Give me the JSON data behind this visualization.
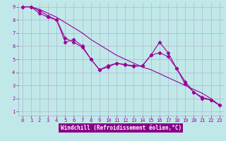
{
  "line1_x": [
    0,
    1,
    2,
    3,
    4,
    5,
    6,
    7,
    8,
    9,
    10,
    11,
    12,
    13,
    14,
    15,
    16,
    17,
    18,
    19,
    20,
    21,
    22,
    23
  ],
  "line1_y": [
    9,
    9,
    8.5,
    8.2,
    8.0,
    6.3,
    6.5,
    6.0,
    5.0,
    4.2,
    4.4,
    4.7,
    4.6,
    4.5,
    4.5,
    5.3,
    6.3,
    5.5,
    4.3,
    3.3,
    2.5,
    2.0,
    1.9,
    1.5
  ],
  "line2_x": [
    0,
    1,
    2,
    3,
    4,
    5,
    6,
    7,
    8,
    9,
    10,
    11,
    12,
    13,
    14,
    15,
    16,
    17,
    18,
    19,
    20,
    21,
    22,
    23
  ],
  "line2_y": [
    9,
    9,
    8.8,
    8.5,
    8.2,
    7.8,
    7.4,
    7.0,
    6.5,
    6.1,
    5.7,
    5.3,
    5.0,
    4.7,
    4.4,
    4.2,
    3.9,
    3.6,
    3.3,
    3.0,
    2.7,
    2.4,
    2.0,
    1.5
  ],
  "line3_x": [
    0,
    1,
    2,
    3,
    4,
    5,
    6,
    7,
    8,
    9,
    10,
    11,
    12,
    13,
    14,
    15,
    16,
    17,
    18,
    19,
    20,
    21,
    22,
    23
  ],
  "line3_y": [
    9,
    9,
    8.7,
    8.3,
    8.0,
    6.6,
    6.3,
    5.9,
    5.0,
    4.2,
    4.5,
    4.7,
    4.55,
    4.45,
    4.5,
    5.3,
    5.5,
    5.2,
    4.3,
    3.1,
    2.5,
    2.1,
    1.9,
    1.5
  ],
  "color": "#990099",
  "bg_color": "#c0e8e8",
  "grid_color": "#aaaacc",
  "xlabel": "Windchill (Refroidissement éolien,°C)",
  "xlim_min": -0.5,
  "xlim_max": 23.5,
  "ylim_min": 0.7,
  "ylim_max": 9.3,
  "xticks": [
    0,
    1,
    2,
    3,
    4,
    5,
    6,
    7,
    8,
    9,
    10,
    11,
    12,
    13,
    14,
    15,
    16,
    17,
    18,
    19,
    20,
    21,
    22,
    23
  ],
  "yticks": [
    1,
    2,
    3,
    4,
    5,
    6,
    7,
    8,
    9
  ],
  "marker": "D",
  "markersize": 2.5,
  "linewidth": 0.8,
  "xlabel_bg": "#880088",
  "tick_fontsize": 5,
  "xlabel_fontsize": 5.5
}
